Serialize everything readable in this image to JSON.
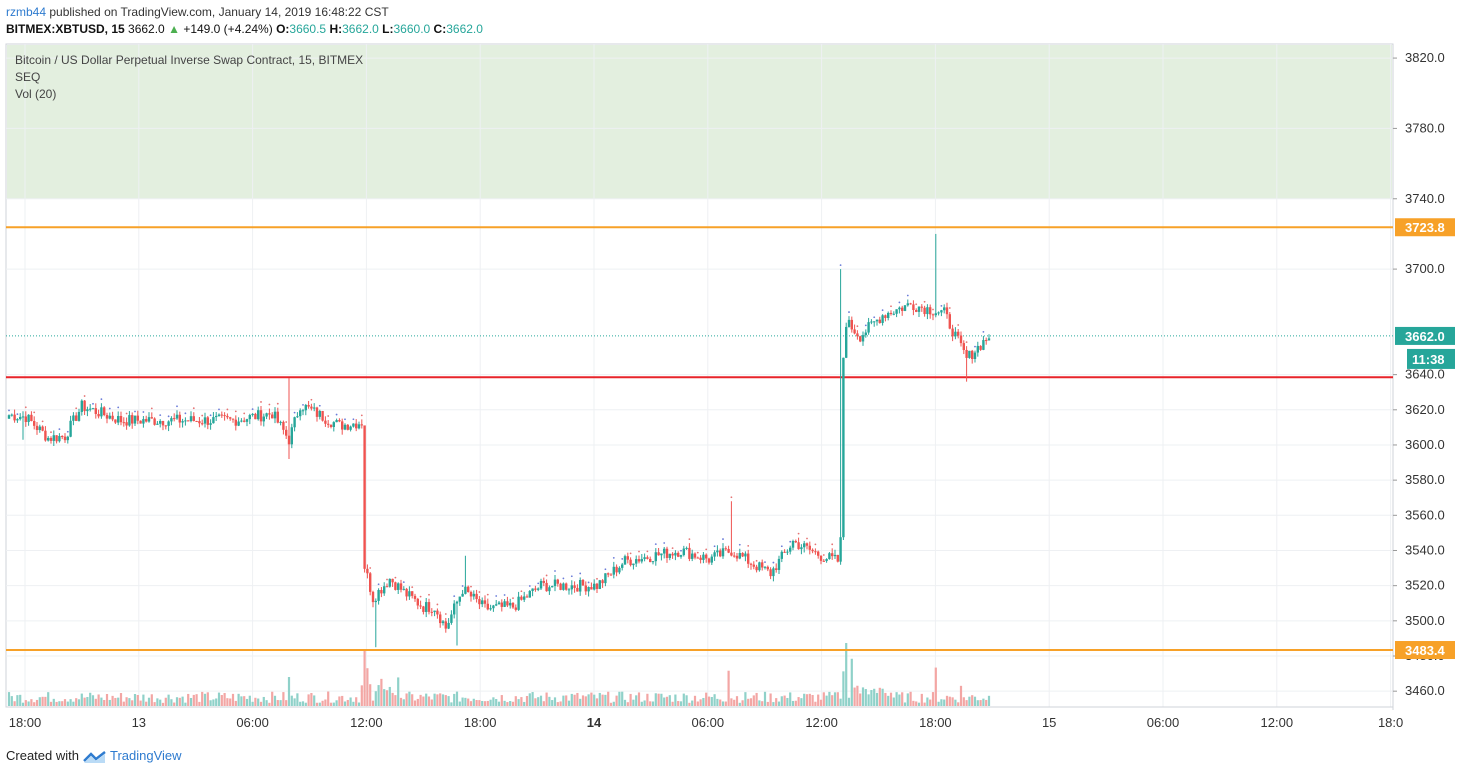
{
  "header": {
    "author": "rzmb44",
    "published_text": "published on TradingView.com, January 14, 2019 16:48:22 CST",
    "symbol": "BITMEX:XBTUSD, 15",
    "price": "3662.0",
    "change": "+149.0 (+4.24%)",
    "o_label": "O:",
    "o_value": "3660.5",
    "h_label": "H:",
    "h_value": "3662.0",
    "l_label": "L:",
    "l_value": "3660.0",
    "c_label": "C:",
    "c_value": "3662.0"
  },
  "legend": {
    "title": "Bitcoin / US Dollar Perpetual Inverse Swap Contract, 15, BITMEX",
    "indicator1": "SEQ",
    "indicator2": "Vol (20)"
  },
  "footer": {
    "created_with": "Created with",
    "brand": "TradingView"
  },
  "colors": {
    "up": "#26a69a",
    "down": "#ef5350",
    "up_vol": "#8fd1c9",
    "down_vol": "#f3a6a4",
    "zone": "#e3efdf",
    "orange_line": "#f7a128",
    "red_line": "#e8242a",
    "grid": "#eef0f3"
  },
  "chart_data": {
    "type": "candlestick",
    "title": "Bitcoin / US Dollar Perpetual Inverse Swap Contract, 15, BITMEX",
    "y_ticks": [
      "3460.0",
      "3480.0",
      "3500.0",
      "3520.0",
      "3540.0",
      "3560.0",
      "3580.0",
      "3600.0",
      "3620.0",
      "3640.0",
      "3700.0",
      "3740.0",
      "3780.0",
      "3820.0"
    ],
    "ylim": [
      3451,
      3828
    ],
    "x_ticks": [
      "18:00",
      "13",
      "06:00",
      "12:00",
      "18:00",
      "14",
      "06:00",
      "12:00",
      "18:00",
      "15",
      "06:00",
      "12:00",
      "18:0"
    ],
    "bold_x_ticks": [
      "14"
    ],
    "current_price_label": "3662.0",
    "countdown_label": "11:38",
    "current_price": 3662.0,
    "supply_zone": {
      "from": 3740,
      "to": 3828
    },
    "levels": [
      {
        "value": 3723.8,
        "label": "3723.8",
        "kind": "resistance"
      },
      {
        "value": 3638.5,
        "label": "",
        "kind": "support"
      },
      {
        "value": 3483.4,
        "label": "3483.4",
        "kind": "support"
      }
    ],
    "grid": true,
    "candle_interval_minutes": 15,
    "anchors": [
      {
        "t": 0,
        "p": 3617
      },
      {
        "t": 6,
        "p": 3616
      },
      {
        "t": 14,
        "p": 3604
      },
      {
        "t": 20,
        "p": 3605
      },
      {
        "t": 26,
        "p": 3622
      },
      {
        "t": 40,
        "p": 3614
      },
      {
        "t": 60,
        "p": 3614
      },
      {
        "t": 80,
        "p": 3614
      },
      {
        "t": 94,
        "p": 3618
      },
      {
        "t": 100,
        "p": 3603
      },
      {
        "t": 104,
        "p": 3623
      },
      {
        "t": 118,
        "p": 3611
      },
      {
        "t": 126,
        "p": 3613
      },
      {
        "t": 127,
        "p": 3531
      },
      {
        "t": 130,
        "p": 3513
      },
      {
        "t": 136,
        "p": 3524
      },
      {
        "t": 142,
        "p": 3515
      },
      {
        "t": 148,
        "p": 3508
      },
      {
        "t": 152,
        "p": 3508
      },
      {
        "t": 156,
        "p": 3496
      },
      {
        "t": 162,
        "p": 3518
      },
      {
        "t": 170,
        "p": 3507
      },
      {
        "t": 180,
        "p": 3508
      },
      {
        "t": 190,
        "p": 3520
      },
      {
        "t": 210,
        "p": 3520
      },
      {
        "t": 220,
        "p": 3534
      },
      {
        "t": 240,
        "p": 3540
      },
      {
        "t": 250,
        "p": 3535
      },
      {
        "t": 258,
        "p": 3540
      },
      {
        "t": 266,
        "p": 3532
      },
      {
        "t": 272,
        "p": 3527
      },
      {
        "t": 280,
        "p": 3545
      },
      {
        "t": 290,
        "p": 3537
      },
      {
        "t": 296,
        "p": 3534
      },
      {
        "t": 297,
        "p": 3545
      },
      {
        "t": 298,
        "p": 3650
      },
      {
        "t": 299,
        "p": 3670
      },
      {
        "t": 304,
        "p": 3662
      },
      {
        "t": 312,
        "p": 3674
      },
      {
        "t": 322,
        "p": 3680
      },
      {
        "t": 334,
        "p": 3675
      },
      {
        "t": 342,
        "p": 3649
      },
      {
        "t": 350,
        "p": 3662
      }
    ],
    "spikes": [
      {
        "t": 5,
        "low": 3603
      },
      {
        "t": 100,
        "low": 3592,
        "high": 3638
      },
      {
        "t": 127,
        "high": 3545
      },
      {
        "t": 131,
        "low": 3485
      },
      {
        "t": 163,
        "high": 3537
      },
      {
        "t": 160,
        "low": 3486
      },
      {
        "t": 258,
        "high": 3568
      },
      {
        "t": 297,
        "high": 3700
      },
      {
        "t": 331,
        "high": 3720
      },
      {
        "t": 342,
        "low": 3636
      }
    ],
    "volume_spikes": [
      {
        "t": 100,
        "v": 4.6,
        "dir": "up"
      },
      {
        "t": 127,
        "v": 9.0,
        "dir": "down"
      },
      {
        "t": 128,
        "v": 6.0,
        "dir": "down"
      },
      {
        "t": 257,
        "v": 5.6,
        "dir": "down"
      },
      {
        "t": 298,
        "v": 5.5,
        "dir": "up"
      },
      {
        "t": 299,
        "v": 10.0,
        "dir": "up"
      },
      {
        "t": 301,
        "v": 7.5,
        "dir": "up"
      },
      {
        "t": 331,
        "v": 6.1,
        "dir": "down"
      },
      {
        "t": 340,
        "v": 3.2,
        "dir": "down"
      }
    ]
  }
}
